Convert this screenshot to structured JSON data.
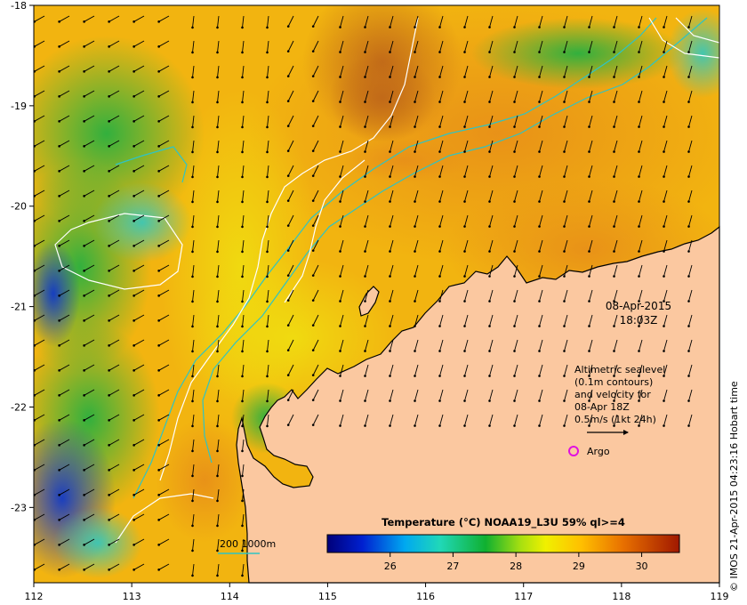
{
  "timestamp": {
    "date": "08-Apr-2015",
    "time": "18:03Z"
  },
  "velocity_legend": {
    "lines": [
      "Altimetric sealevel",
      "(0.1m contours)",
      "and velocity for",
      "08-Apr 18Z",
      "0.5m/s (1kt 24h)"
    ]
  },
  "argo_legend": {
    "label": "Argo",
    "color": "#e010e0"
  },
  "depth_legend": {
    "label": "200  1000m",
    "color": "#2ec4c4"
  },
  "colorbar": {
    "title": "Temperature (°C) NOAA19_L3U 59% ql>=4",
    "min": 25.0,
    "max": 30.6,
    "tick_labels": [
      "26",
      "27",
      "28",
      "29",
      "30"
    ],
    "tick_values": [
      26,
      27,
      28,
      29,
      30
    ]
  },
  "credit": "© IMOS 21-Apr-2015 04:23:16 Hobart time",
  "axes": {
    "lon_labels": [
      "112",
      "113",
      "114",
      "115",
      "116",
      "117",
      "118",
      "119"
    ],
    "lon_values": [
      112,
      113,
      114,
      115,
      116,
      117,
      118,
      119
    ],
    "lat_labels": [
      "-18",
      "-19",
      "-20",
      "-21",
      "-22",
      "-23"
    ],
    "lat_values": [
      -18,
      -19,
      -20,
      -21,
      -22,
      -23
    ],
    "lon_range": [
      112,
      119
    ],
    "lat_range": [
      -23.75,
      -18
    ]
  },
  "colors": {
    "land": "#fbc8a0",
    "coast": "#000000",
    "contour": "#ffffff",
    "isobath": "#2ec4c4"
  }
}
